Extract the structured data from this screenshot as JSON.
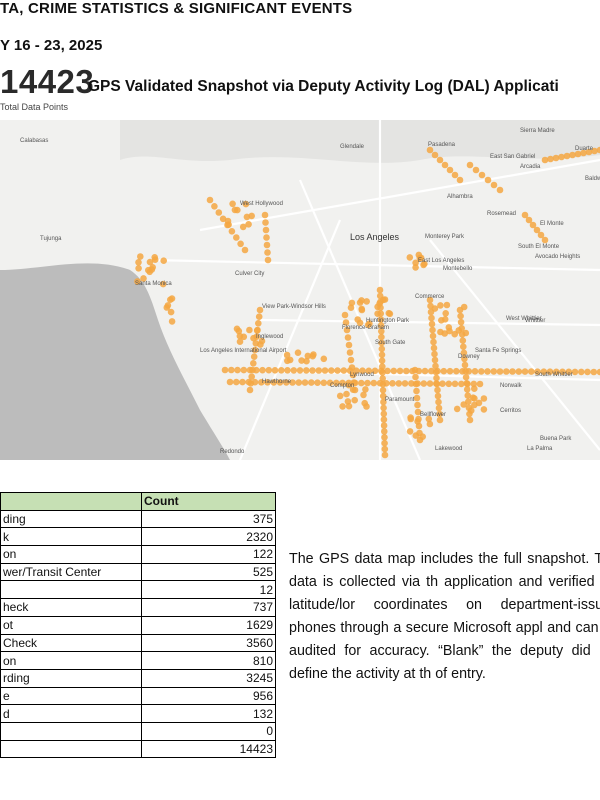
{
  "header": {
    "line1": "TA, CRIME STATISTICS & SIGNIFICANT EVENTS",
    "line2": "Y 16 - 23, 2025"
  },
  "summary": {
    "total": "14423",
    "total_label": "Total Data Points",
    "snapshot_title": "GPS Validated Snapshot via Deputy Activity Log (DAL) Applicati"
  },
  "map": {
    "labels": [
      "Sierra Madre",
      "Duarte",
      "Glendale",
      "Pasadena",
      "Arcadia",
      "East San Gabriel",
      "Alhambra",
      "Baldwin Park",
      "Rosemead",
      "El Monte",
      "West Hollywood",
      "Los Angeles",
      "Monterey Park",
      "South El Monte",
      "Avocado Heights",
      "Culver City",
      "East Los Angeles",
      "Montebello",
      "Santa Monica",
      "Commerce",
      "View Park-Windsor Hills",
      "Huntington Park",
      "West Whittier",
      "Whittier",
      "Inglewood",
      "Florence-Graham",
      "South Gate",
      "Downey",
      "Santa Fe Springs",
      "Los Angeles International Airport",
      "Hawthorne",
      "Lynwood",
      "Norwalk",
      "South Whittier",
      "Compton",
      "Paramount",
      "Bellflower",
      "Cerritos",
      "Buena Park",
      "Redondo",
      "Lakewood",
      "La Palma",
      "Tujunga",
      "Calabasas"
    ],
    "dot_color": "#f5a742"
  },
  "table": {
    "header": [
      "",
      "Count"
    ],
    "rows": [
      {
        "label": "ding",
        "count": "375"
      },
      {
        "label": "k",
        "count": "2320"
      },
      {
        "label": "on",
        "count": "122"
      },
      {
        "label": "wer/Transit Center",
        "count": "525"
      },
      {
        "label": "",
        "count": "12"
      },
      {
        "label": "heck",
        "count": "737"
      },
      {
        "label": "ot",
        "count": "1629"
      },
      {
        "label": "Check",
        "count": "3560"
      },
      {
        "label": "on",
        "count": "810"
      },
      {
        "label": "rding",
        "count": "3245"
      },
      {
        "label": "e",
        "count": "956"
      },
      {
        "label": "d",
        "count": "132"
      },
      {
        "label": "",
        "count": "0"
      }
    ],
    "total": "14423"
  },
  "paragraph": "The GPS data map includes the full snapshot. The data is collected via th application and verified via latitude/lor coordinates on department-issued phones through a secure Microsoft appl and can be audited for accuracy. “Blank” the deputy did not define the activity at th of entry."
}
